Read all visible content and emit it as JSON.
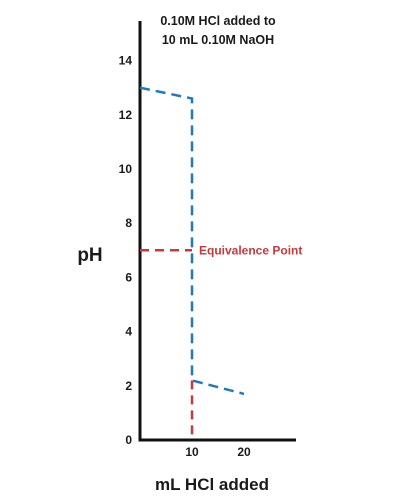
{
  "chart_data": {
    "type": "line",
    "title_lines": [
      "0.10M HCl added to",
      "10 mL 0.10M NaOH"
    ],
    "xlabel": "mL HCl added",
    "ylabel": "pH",
    "xlim": [
      0,
      30
    ],
    "ylim": [
      0,
      15.5
    ],
    "xticks": [
      10,
      20
    ],
    "yticks": [
      0,
      2,
      4,
      6,
      8,
      10,
      12,
      14
    ],
    "grid": false,
    "series": [
      {
        "style": "dashed",
        "color": "#1f78c1",
        "points": [
          [
            0,
            13.0
          ],
          [
            10,
            12.6
          ],
          [
            10,
            2.2
          ],
          [
            20,
            1.7
          ]
        ]
      }
    ],
    "annotations": [
      {
        "text": "Equivalence Point",
        "color": "#c8383c",
        "horizontal_line": {
          "y": 7,
          "x_from": 0,
          "x_to": 10
        },
        "vertical_line": {
          "x": 10,
          "y_from": 0,
          "y_to": 2.2
        }
      }
    ]
  }
}
